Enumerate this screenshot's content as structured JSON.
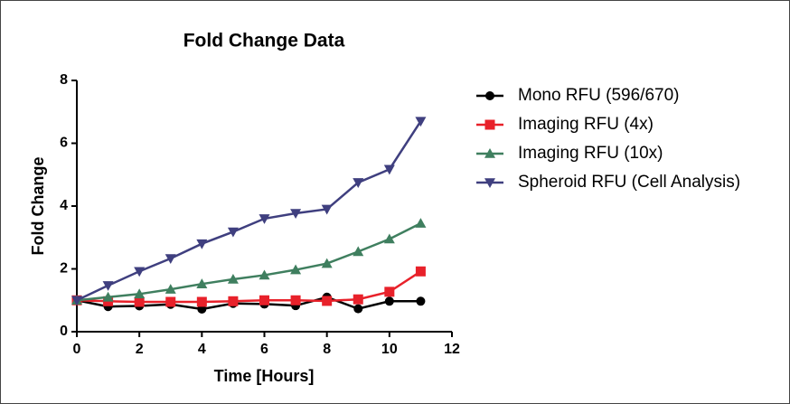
{
  "chart_data": {
    "type": "line",
    "title": "Fold Change Data",
    "x_label": "Time [Hours]",
    "y_label": "Fold Change",
    "xlim": [
      0,
      12
    ],
    "xticks": [
      0,
      2,
      4,
      6,
      8,
      10,
      12
    ],
    "ylim": [
      0,
      8
    ],
    "yticks": [
      0,
      2,
      4,
      6,
      8
    ],
    "x": [
      0,
      1,
      2,
      3,
      4,
      5,
      6,
      7,
      8,
      9,
      10,
      11
    ],
    "series": [
      {
        "name": "Mono RFU (596/670)",
        "color": "#000000",
        "marker": "circle",
        "values": [
          1.0,
          0.8,
          0.82,
          0.87,
          0.72,
          0.9,
          0.88,
          0.83,
          1.1,
          0.73,
          0.97,
          0.97
        ]
      },
      {
        "name": "Imaging RFU (4x)",
        "color": "#e8212a",
        "marker": "square",
        "values": [
          1.0,
          0.97,
          0.95,
          0.95,
          0.95,
          0.97,
          1.0,
          1.0,
          0.98,
          1.03,
          1.27,
          1.92
        ]
      },
      {
        "name": "Imaging RFU (10x)",
        "color": "#3f7f5f",
        "marker": "triangle-up",
        "values": [
          1.0,
          1.1,
          1.2,
          1.35,
          1.52,
          1.67,
          1.8,
          1.97,
          2.17,
          2.55,
          2.95,
          3.45
        ]
      },
      {
        "name": "Spheroid RFU (Cell Analysis)",
        "color": "#3f3f7f",
        "marker": "triangle-down",
        "values": [
          1.0,
          1.47,
          1.92,
          2.33,
          2.8,
          3.18,
          3.6,
          3.77,
          3.9,
          4.75,
          5.17,
          6.7
        ]
      }
    ]
  }
}
